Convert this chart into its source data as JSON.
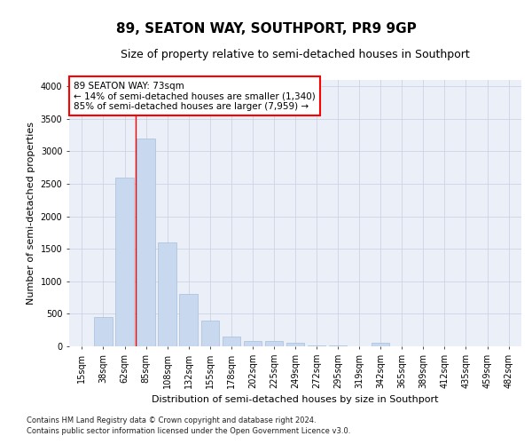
{
  "title": "89, SEATON WAY, SOUTHPORT, PR9 9GP",
  "subtitle": "Size of property relative to semi-detached houses in Southport",
  "xlabel": "Distribution of semi-detached houses by size in Southport",
  "ylabel": "Number of semi-detached properties",
  "footnote1": "Contains HM Land Registry data © Crown copyright and database right 2024.",
  "footnote2": "Contains public sector information licensed under the Open Government Licence v3.0.",
  "categories": [
    "15sqm",
    "38sqm",
    "62sqm",
    "85sqm",
    "108sqm",
    "132sqm",
    "155sqm",
    "178sqm",
    "202sqm",
    "225sqm",
    "249sqm",
    "272sqm",
    "295sqm",
    "319sqm",
    "342sqm",
    "365sqm",
    "389sqm",
    "412sqm",
    "435sqm",
    "459sqm",
    "482sqm"
  ],
  "values": [
    5,
    450,
    2600,
    3200,
    1600,
    800,
    400,
    150,
    80,
    80,
    50,
    10,
    10,
    5,
    50,
    5,
    0,
    0,
    0,
    0,
    0
  ],
  "bar_color": "#c8d8ee",
  "bar_edge_color": "#a8bedd",
  "annotation_box_text": "89 SEATON WAY: 73sqm\n← 14% of semi-detached houses are smaller (1,340)\n85% of semi-detached houses are larger (7,959) →",
  "annotation_box_color": "white",
  "annotation_box_edge_color": "red",
  "red_line_x": 2.5,
  "ylim": [
    0,
    4100
  ],
  "yticks": [
    0,
    500,
    1000,
    1500,
    2000,
    2500,
    3000,
    3500,
    4000
  ],
  "grid_color": "#ccd4e4",
  "background_color": "#eaeff8",
  "title_fontsize": 11,
  "subtitle_fontsize": 9,
  "axis_label_fontsize": 8,
  "tick_fontsize": 7,
  "annotation_fontsize": 7.5,
  "footnote_fontsize": 6
}
